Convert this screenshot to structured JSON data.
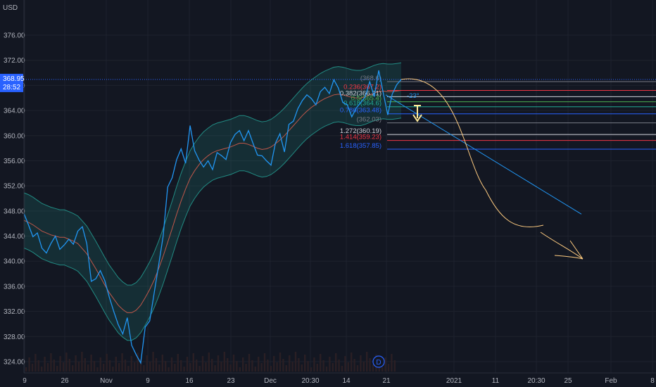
{
  "header": {
    "currency": "USD"
  },
  "chart_data": {
    "type": "line",
    "ylim": [
      322.5,
      379.0
    ],
    "y_ticks": [
      "376.00",
      "372.00",
      "368.00",
      "364.00",
      "360.00",
      "356.00",
      "352.00",
      "348.00",
      "344.00",
      "340.00",
      "336.00",
      "332.00",
      "328.00",
      "324.00"
    ],
    "x_ticks": [
      "9",
      "26",
      "Nov",
      "9",
      "16",
      "23",
      "Dec",
      "20:30",
      "14",
      "21",
      "2021",
      "11",
      "20:30",
      "25",
      "Feb",
      "8"
    ],
    "price_label": {
      "value": "368.95",
      "countdown": "28:52",
      "color": "#2962ff"
    },
    "series": [
      {
        "values": [
          347.6,
          345.8,
          343.9,
          344.5,
          342.1,
          341.3,
          342.8,
          344.0,
          341.9,
          342.6,
          343.5,
          342.7,
          344.8,
          345.5,
          342.8,
          336.8,
          337.2,
          338.5,
          336.9,
          334.3,
          332.0,
          329.9,
          328.4,
          331.0,
          326.6,
          325.1,
          323.8,
          329.5,
          330.5,
          334.9,
          339.4,
          344.0,
          351.8,
          353.3,
          356.2,
          357.9,
          355.6,
          361.6,
          357.6,
          356.1,
          355.0,
          356.0,
          354.6,
          357.3,
          356.8,
          356.2,
          358.9,
          360.2,
          360.8,
          359.2,
          360.8,
          358.8,
          356.9,
          356.8,
          356.0,
          355.3,
          358.8,
          360.3,
          357.4,
          361.8,
          362.3,
          364.3,
          365.6,
          366.5,
          365.9,
          364.9,
          367.0,
          367.7,
          366.7,
          368.9,
          367.6,
          365.3,
          364.9,
          363.0,
          364.4,
          365.3,
          366.2,
          368.6,
          366.2,
          370.4,
          366.8,
          363.3,
          366.6,
          368.1,
          368.95
        ]
      },
      {
        "values": [
          346.5,
          346.2,
          345.8,
          345.3,
          344.8,
          344.5,
          344.2,
          344.0,
          343.8,
          343.8,
          343.5,
          343.2,
          342.8,
          342.0,
          341.2,
          340.0,
          338.8,
          337.5,
          336.2,
          335.0,
          334.0,
          333.0,
          332.3,
          331.8,
          331.8,
          332.2,
          333.0,
          334.2,
          335.5,
          337.0,
          338.8,
          340.8,
          343.0,
          345.2,
          347.5,
          349.6,
          351.5,
          353.2,
          354.4,
          355.4,
          356.2,
          356.8,
          357.3,
          357.6,
          357.8,
          358.0,
          358.2,
          358.5,
          358.8,
          358.8,
          358.6,
          358.3,
          358.0,
          357.8,
          357.9,
          358.2,
          358.7,
          359.3,
          360.0,
          360.8,
          361.6,
          362.4,
          363.2,
          363.9,
          364.5,
          365.0,
          365.5,
          365.9,
          366.2,
          366.5,
          366.6,
          366.5,
          366.3,
          366.1,
          366.0,
          366.0,
          366.2,
          366.5,
          366.8,
          367.0,
          367.1,
          367.0,
          367.0,
          367.1,
          367.2
        ]
      }
    ],
    "fibonacci": [
      {
        "label": "(368.6)",
        "value": 368.6,
        "color": "#787b86"
      },
      {
        "label": "0.236(367.2)",
        "value": 367.2,
        "color": "#f23645"
      },
      {
        "label": "0.382(366.21)",
        "value": 366.21,
        "color": "#d1d4dc"
      },
      {
        "label": "0.5(365.4)",
        "value": 365.4,
        "color": "#4caf50"
      },
      {
        "label": "0.618(364.6)",
        "value": 364.6,
        "color": "#22ab94"
      },
      {
        "label": "0.786(363.48)",
        "value": 363.48,
        "color": "#2962ff"
      },
      {
        "label": "(362.03)",
        "value": 362.03,
        "color": "#787b86"
      },
      {
        "label": "1.272(360.19)",
        "value": 360.19,
        "color": "#d1d4dc"
      },
      {
        "label": "1.414(359.23)",
        "value": 359.23,
        "color": "#f23645"
      },
      {
        "label": "1.618(357.85)",
        "value": 357.85,
        "color": "#2962ff"
      }
    ],
    "annotations": {
      "trend_angle_label": "-23°",
      "dividend_marker": "D"
    },
    "colors": {
      "price": "#2196f3",
      "ma": "#c0574a",
      "band": "#26a69a",
      "projection": "#ffcc80",
      "background": "#131722"
    }
  }
}
